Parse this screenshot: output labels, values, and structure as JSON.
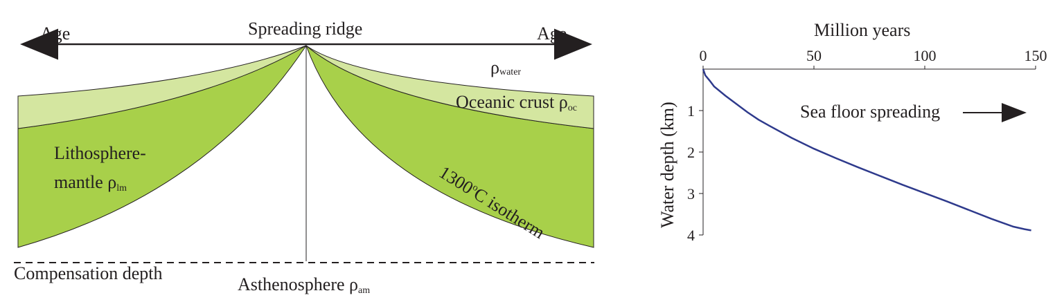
{
  "diagram": {
    "age_left": "Age",
    "age_right": "Age",
    "ridge_label": "Spreading ridge",
    "rho_symbol": "ρ",
    "water_sub": "water",
    "oceanic_crust": "Oceanic crust ",
    "oc_sub": "oc",
    "litho_line1": "Lithosphere-",
    "litho_line2": "mantle ",
    "lm_sub": "lm",
    "isotherm_num": "1300",
    "isotherm_deg": "o",
    "isotherm_rest": "C isotherm",
    "compensation": "Compensation depth",
    "astheno": "Asthenosphere ",
    "am_sub": "am",
    "colors": {
      "mantle": "#a8d04a",
      "crust": "#d4e6a0",
      "outline": "#231f20"
    }
  },
  "chart_data": {
    "type": "line",
    "title": "",
    "xlabel": "Million years",
    "ylabel": "Water depth (km)",
    "xlim": [
      0,
      150
    ],
    "ylim": [
      0,
      4
    ],
    "x_ticks": [
      "0",
      "50",
      "100",
      "150"
    ],
    "y_ticks": [
      "1",
      "2",
      "3",
      "4"
    ],
    "annotation": "Sea floor spreading",
    "color": "#2e3a8c",
    "x": [
      0,
      1,
      3,
      5,
      10,
      15,
      20,
      25,
      30,
      40,
      50,
      60,
      70,
      80,
      90,
      100,
      110,
      120,
      130,
      140,
      145,
      148
    ],
    "y": [
      0,
      0.15,
      0.28,
      0.42,
      0.64,
      0.84,
      1.04,
      1.22,
      1.37,
      1.66,
      1.92,
      2.15,
      2.37,
      2.58,
      2.79,
      2.99,
      3.19,
      3.4,
      3.61,
      3.8,
      3.86,
      3.89
    ]
  }
}
